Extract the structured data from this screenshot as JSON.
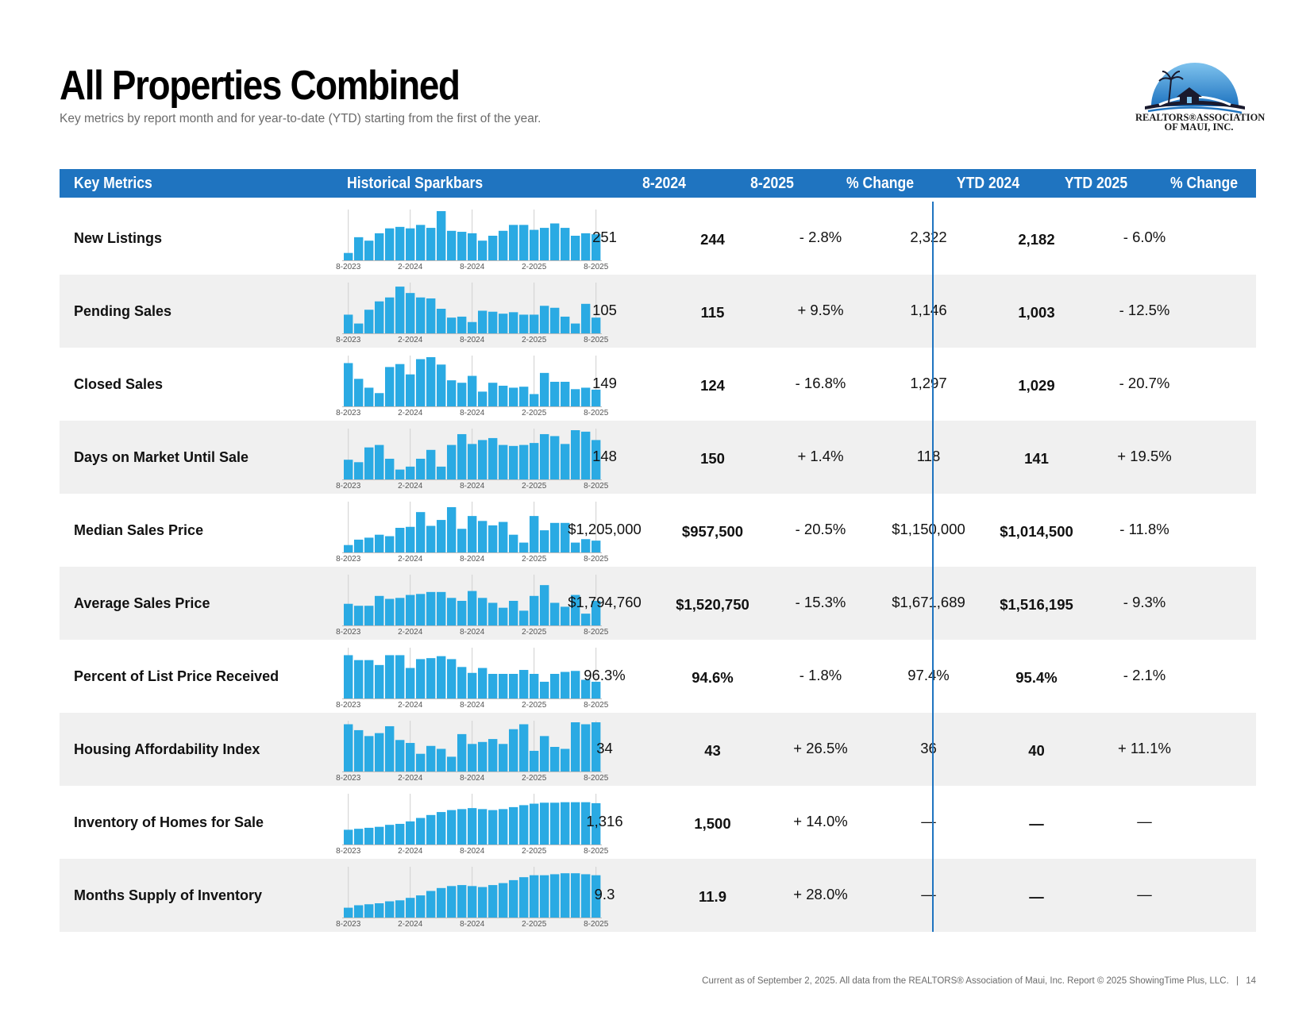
{
  "header": {
    "title": "All Properties Combined",
    "subtitle": "Key metrics by report month and for year-to-date (YTD) starting from the first of the year.",
    "logo_line1": "REALTORS®ASSOCIATION",
    "logo_line2": "OF MAUI, INC."
  },
  "table": {
    "columns": [
      "Key Metrics",
      "Historical Sparkbars",
      "8-2024",
      "8-2025",
      "% Change",
      "YTD 2024",
      "YTD 2025",
      "% Change"
    ],
    "spark_axis_labels": [
      "8-2023",
      "2-2024",
      "8-2024",
      "2-2025",
      "8-2025"
    ],
    "rows": [
      {
        "metric": "New Listings",
        "m2024": "251",
        "m2025": "244",
        "change": "- 2.8%",
        "ytd2024": "2,322",
        "ytd2025": "2,182",
        "ytd_change": "- 6.0%",
        "spark": [
          0.15,
          0.47,
          0.4,
          0.55,
          0.65,
          0.68,
          0.65,
          0.72,
          0.66,
          1.0,
          0.6,
          0.58,
          0.55,
          0.4,
          0.5,
          0.6,
          0.72,
          0.72,
          0.62,
          0.66,
          0.75,
          0.66,
          0.5,
          0.55,
          0.53
        ]
      },
      {
        "metric": "Pending Sales",
        "m2024": "105",
        "m2025": "115",
        "change": "+ 9.5%",
        "ytd2024": "1,146",
        "ytd2025": "1,003",
        "ytd_change": "- 12.5%",
        "spark": [
          0.38,
          0.2,
          0.48,
          0.65,
          0.73,
          0.95,
          0.82,
          0.73,
          0.71,
          0.5,
          0.32,
          0.34,
          0.23,
          0.46,
          0.44,
          0.4,
          0.43,
          0.38,
          0.38,
          0.56,
          0.52,
          0.34,
          0.2,
          0.6,
          0.32
        ]
      },
      {
        "metric": "Closed Sales",
        "m2024": "149",
        "m2025": "124",
        "change": "- 16.8%",
        "ytd2024": "1,297",
        "ytd2025": "1,029",
        "ytd_change": "- 20.7%",
        "spark": [
          0.88,
          0.56,
          0.38,
          0.27,
          0.8,
          0.86,
          0.65,
          0.96,
          1.0,
          0.85,
          0.53,
          0.48,
          0.62,
          0.3,
          0.48,
          0.42,
          0.38,
          0.4,
          0.25,
          0.68,
          0.5,
          0.5,
          0.35,
          0.38,
          0.34
        ]
      },
      {
        "metric": "Days on Market Until Sale",
        "m2024": "148",
        "m2025": "150",
        "change": "+ 1.4%",
        "ytd2024": "118",
        "ytd2025": "141",
        "ytd_change": "+ 19.5%",
        "spark": [
          0.4,
          0.35,
          0.65,
          0.7,
          0.42,
          0.2,
          0.26,
          0.42,
          0.6,
          0.26,
          0.7,
          0.92,
          0.72,
          0.8,
          0.84,
          0.7,
          0.68,
          0.7,
          0.74,
          0.92,
          0.88,
          0.72,
          1.0,
          0.97,
          0.8
        ]
      },
      {
        "metric": "Median Sales Price",
        "m2024": "$1,205,000",
        "m2025": "$957,500",
        "change": "- 20.5%",
        "ytd2024": "$1,150,000",
        "ytd2025": "$1,014,500",
        "ytd_change": "- 11.8%",
        "spark": [
          0.15,
          0.26,
          0.3,
          0.36,
          0.33,
          0.5,
          0.52,
          0.82,
          0.54,
          0.66,
          0.92,
          0.48,
          0.74,
          0.64,
          0.55,
          0.62,
          0.36,
          0.2,
          0.74,
          0.45,
          0.6,
          0.6,
          0.2,
          0.27,
          0.24
        ]
      },
      {
        "metric": "Average Sales Price",
        "m2024": "$1,794,760",
        "m2025": "$1,520,750",
        "change": "- 15.3%",
        "ytd2024": "$1,671,689",
        "ytd2025": "$1,516,195",
        "ytd_change": "- 9.3%",
        "spark": [
          0.44,
          0.4,
          0.4,
          0.6,
          0.54,
          0.56,
          0.62,
          0.64,
          0.68,
          0.68,
          0.56,
          0.5,
          0.7,
          0.56,
          0.46,
          0.36,
          0.5,
          0.3,
          0.6,
          0.82,
          0.46,
          0.38,
          0.62,
          0.24,
          0.5
        ]
      },
      {
        "metric": "Percent of List Price Received",
        "m2024": "96.3%",
        "m2025": "94.6%",
        "change": "- 1.8%",
        "ytd2024": "97.4%",
        "ytd2025": "95.4%",
        "ytd_change": "- 2.1%",
        "spark": [
          0.88,
          0.78,
          0.78,
          0.68,
          0.88,
          0.88,
          0.62,
          0.8,
          0.82,
          0.86,
          0.8,
          0.64,
          0.52,
          0.62,
          0.5,
          0.5,
          0.5,
          0.58,
          0.5,
          0.34,
          0.5,
          0.54,
          0.56,
          0.38,
          0.34
        ]
      },
      {
        "metric": "Housing Affordability Index",
        "m2024": "34",
        "m2025": "43",
        "change": "+ 26.5%",
        "ytd2024": "36",
        "ytd2025": "40",
        "ytd_change": "+ 11.1%",
        "spark": [
          0.96,
          0.84,
          0.72,
          0.78,
          0.92,
          0.64,
          0.58,
          0.36,
          0.52,
          0.46,
          0.3,
          0.76,
          0.56,
          0.6,
          0.66,
          0.56,
          0.86,
          0.96,
          0.42,
          0.72,
          0.5,
          0.46,
          1.0,
          0.96,
          1.0
        ]
      },
      {
        "metric": "Inventory of Homes for Sale",
        "m2024": "1,316",
        "m2025": "1,500",
        "change": "+ 14.0%",
        "ytd2024": "—",
        "ytd2025": "—",
        "ytd_change": "—",
        "spark": [
          0.3,
          0.32,
          0.34,
          0.36,
          0.4,
          0.42,
          0.47,
          0.54,
          0.6,
          0.66,
          0.7,
          0.72,
          0.74,
          0.72,
          0.7,
          0.72,
          0.76,
          0.8,
          0.83,
          0.85,
          0.85,
          0.86,
          0.86,
          0.86,
          0.84
        ]
      },
      {
        "metric": "Months Supply of Inventory",
        "m2024": "9.3",
        "m2025": "11.9",
        "change": "+ 28.0%",
        "ytd2024": "—",
        "ytd2025": "—",
        "ytd_change": "—",
        "spark": [
          0.2,
          0.25,
          0.27,
          0.29,
          0.33,
          0.35,
          0.4,
          0.45,
          0.54,
          0.6,
          0.64,
          0.66,
          0.64,
          0.62,
          0.66,
          0.7,
          0.76,
          0.82,
          0.86,
          0.86,
          0.88,
          0.9,
          0.9,
          0.88,
          0.86
        ]
      }
    ]
  },
  "colors": {
    "header_bg": "#1f74c0",
    "bar": "#2aaae3",
    "row_shade": "#f0f0f0",
    "divider": "#1f74c0"
  },
  "footer": {
    "text": "Current as of September 2, 2025. All data from the REALTORS® Association of Maui, Inc. Report © 2025 ShowingTime Plus, LLC.",
    "page": "14"
  }
}
